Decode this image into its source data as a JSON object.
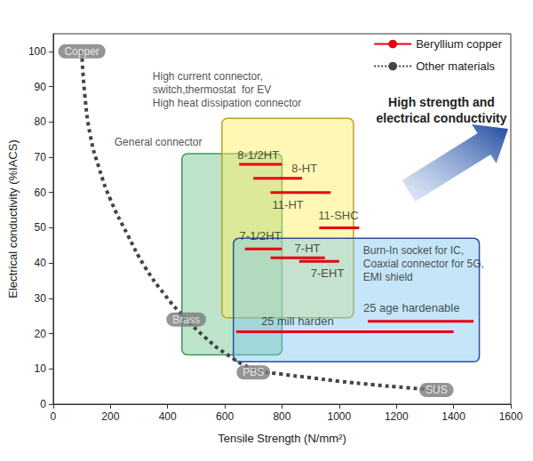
{
  "chart_data": {
    "type": "property_map",
    "xlabel": "Tensile Strength (N/mm²)",
    "ylabel": "Electrical conductivity (%IACS)",
    "annotation": "High strength and\nelectrical conductivity",
    "xlim": [
      0,
      1600
    ],
    "xticks": [
      0,
      200,
      400,
      600,
      800,
      1000,
      1200,
      1400,
      1600
    ],
    "ylim": [
      0,
      105
    ],
    "yticks": [
      0,
      10,
      20,
      30,
      40,
      50,
      60,
      70,
      80,
      90,
      100
    ],
    "grid": false,
    "legend": "top-right",
    "regions": [
      {
        "label": "General connector",
        "x": [
          450,
          800
        ],
        "y": [
          14,
          71
        ],
        "color": "#6cc48c"
      },
      {
        "label": "High current connector,\nswitch,thermostat  for EV\nHigh heat dissipation connector",
        "x": [
          590,
          1050
        ],
        "y": [
          24.5,
          81
        ],
        "color": "#fff05a"
      },
      {
        "label": "Burn-In socket for IC,\nCoaxial connector for 5G,\nEMI shield",
        "x": [
          630,
          1490
        ],
        "y": [
          12,
          47
        ],
        "color": "#7fc8f0"
      }
    ],
    "series": [
      {
        "name": "Beryllium copper",
        "type": "segments",
        "color": "#e60012",
        "line_style": "solid",
        "segments": [
          {
            "label": "8-1/2HT",
            "x": [
              650,
              800
            ],
            "y": 68
          },
          {
            "label": "8-HT",
            "x": [
              700,
              870
            ],
            "y": 64
          },
          {
            "label": "11-HT",
            "x": [
              760,
              970
            ],
            "y": 60
          },
          {
            "label": "11-SHC",
            "x": [
              930,
              1070
            ],
            "y": 50
          },
          {
            "label": "7-1/2HT",
            "x": [
              670,
              800
            ],
            "y": 44
          },
          {
            "label": "7-HT",
            "x": [
              760,
              950
            ],
            "y": 41.5
          },
          {
            "label": "7-EHT",
            "x": [
              860,
              1000
            ],
            "y": 40.5
          },
          {
            "label": "25 mill harden",
            "x": [
              640,
              1400
            ],
            "y": 20.5
          },
          {
            "label": "25 age hardenable",
            "x": [
              1100,
              1470
            ],
            "y": 23.5
          }
        ]
      },
      {
        "name": "Other materials",
        "type": "line",
        "color": "#444444",
        "line_style": "dotted",
        "x": [
          100,
          110,
          130,
          160,
          200,
          260,
          320,
          390,
          460,
          530,
          600,
          700,
          800,
          900,
          1000,
          1120,
          1230,
          1340
        ],
        "values": [
          100,
          88,
          76,
          67,
          58,
          48,
          39,
          31,
          24.5,
          19,
          14.5,
          10,
          8.5,
          7.5,
          6.5,
          5.5,
          4.7,
          4
        ],
        "points": [
          {
            "label": "Copper",
            "x": 100,
            "y": 100
          },
          {
            "label": "Brass",
            "x": 465,
            "y": 24
          },
          {
            "label": "PBS",
            "x": 700,
            "y": 9
          },
          {
            "label": "SUS",
            "x": 1340,
            "y": 4
          }
        ]
      }
    ]
  }
}
